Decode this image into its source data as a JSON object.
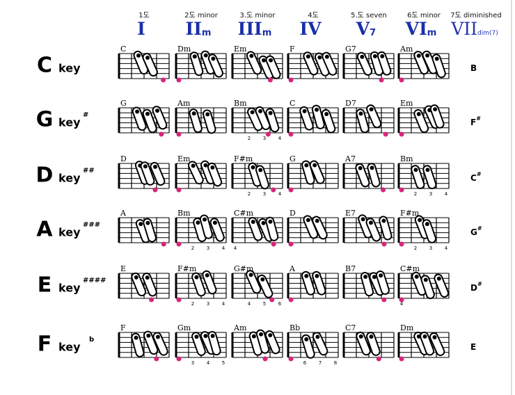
{
  "header": {
    "columns": [
      {
        "degree": "1도",
        "numeral": "I"
      },
      {
        "degree": "2도 minor",
        "numeral": "II",
        "suffix": "m"
      },
      {
        "degree": "3.도 minor",
        "numeral": "III",
        "suffix": "m"
      },
      {
        "degree": "4도",
        "numeral": "IV"
      },
      {
        "degree": "5.도 seven",
        "numeral": "V",
        "suffix": "7"
      },
      {
        "degree": "6도 minor",
        "numeral": "VI",
        "suffix": "m"
      },
      {
        "degree": "7도 diminished",
        "numeral": "VII",
        "suffix": "dim(7)"
      }
    ]
  },
  "rows": [
    {
      "key": "C",
      "word": "key",
      "chords": [
        {
          "name": "C"
        },
        {
          "name": "Dm"
        },
        {
          "name": "Em"
        },
        {
          "name": "F"
        },
        {
          "name": "G7"
        },
        {
          "name": "Am"
        }
      ],
      "last": {
        "note": "B"
      }
    },
    {
      "key": "G",
      "word": "key",
      "accidental": "#",
      "chords": [
        {
          "name": "G"
        },
        {
          "name": "Am"
        },
        {
          "name": "Bm",
          "frets": [
            "2",
            "3",
            "4"
          ]
        },
        {
          "name": "C"
        },
        {
          "name": "D7"
        },
        {
          "name": "Em"
        }
      ],
      "last": {
        "note": "F",
        "sharp": "#"
      }
    },
    {
      "key": "D",
      "word": "key",
      "accidental": "##",
      "chords": [
        {
          "name": "D"
        },
        {
          "name": "Em"
        },
        {
          "name": "F#m",
          "frets": [
            "2",
            "3",
            "4"
          ]
        },
        {
          "name": "G"
        },
        {
          "name": "A7"
        },
        {
          "name": "Bm",
          "frets": [
            "2",
            "3",
            "4"
          ]
        }
      ],
      "last": {
        "note": "C",
        "sharp": "#"
      }
    },
    {
      "key": "A",
      "word": "key",
      "accidental": "###",
      "chords": [
        {
          "name": "A"
        },
        {
          "name": "Bm",
          "frets": [
            "2",
            "3",
            "4"
          ]
        },
        {
          "name": "C#m",
          "frets": [
            "4"
          ]
        },
        {
          "name": "D"
        },
        {
          "name": "E7"
        },
        {
          "name": "F#m",
          "frets": [
            "2",
            "3",
            "4"
          ]
        }
      ],
      "last": {
        "note": "G",
        "sharp": "#"
      }
    },
    {
      "key": "E",
      "word": "key",
      "accidental": "####",
      "chords": [
        {
          "name": "E"
        },
        {
          "name": "F#m",
          "frets": [
            "2",
            "3",
            "4"
          ]
        },
        {
          "name": "G#m",
          "frets": [
            "4",
            "5",
            "6"
          ]
        },
        {
          "name": "A"
        },
        {
          "name": "B7"
        },
        {
          "name": "C#m",
          "frets": [
            "4"
          ]
        }
      ],
      "last": {
        "note": "D",
        "sharp": "#"
      }
    },
    {
      "key": "F",
      "word": "key",
      "accidental": "b",
      "chords": [
        {
          "name": "F"
        },
        {
          "name": "Gm",
          "frets": [
            "3",
            "4",
            "5"
          ]
        },
        {
          "name": "Am"
        },
        {
          "name": "Bb",
          "frets": [
            "6",
            "7",
            "8"
          ]
        },
        {
          "name": "C7"
        },
        {
          "name": "Dm"
        }
      ],
      "last": {
        "note": "E"
      }
    }
  ]
}
